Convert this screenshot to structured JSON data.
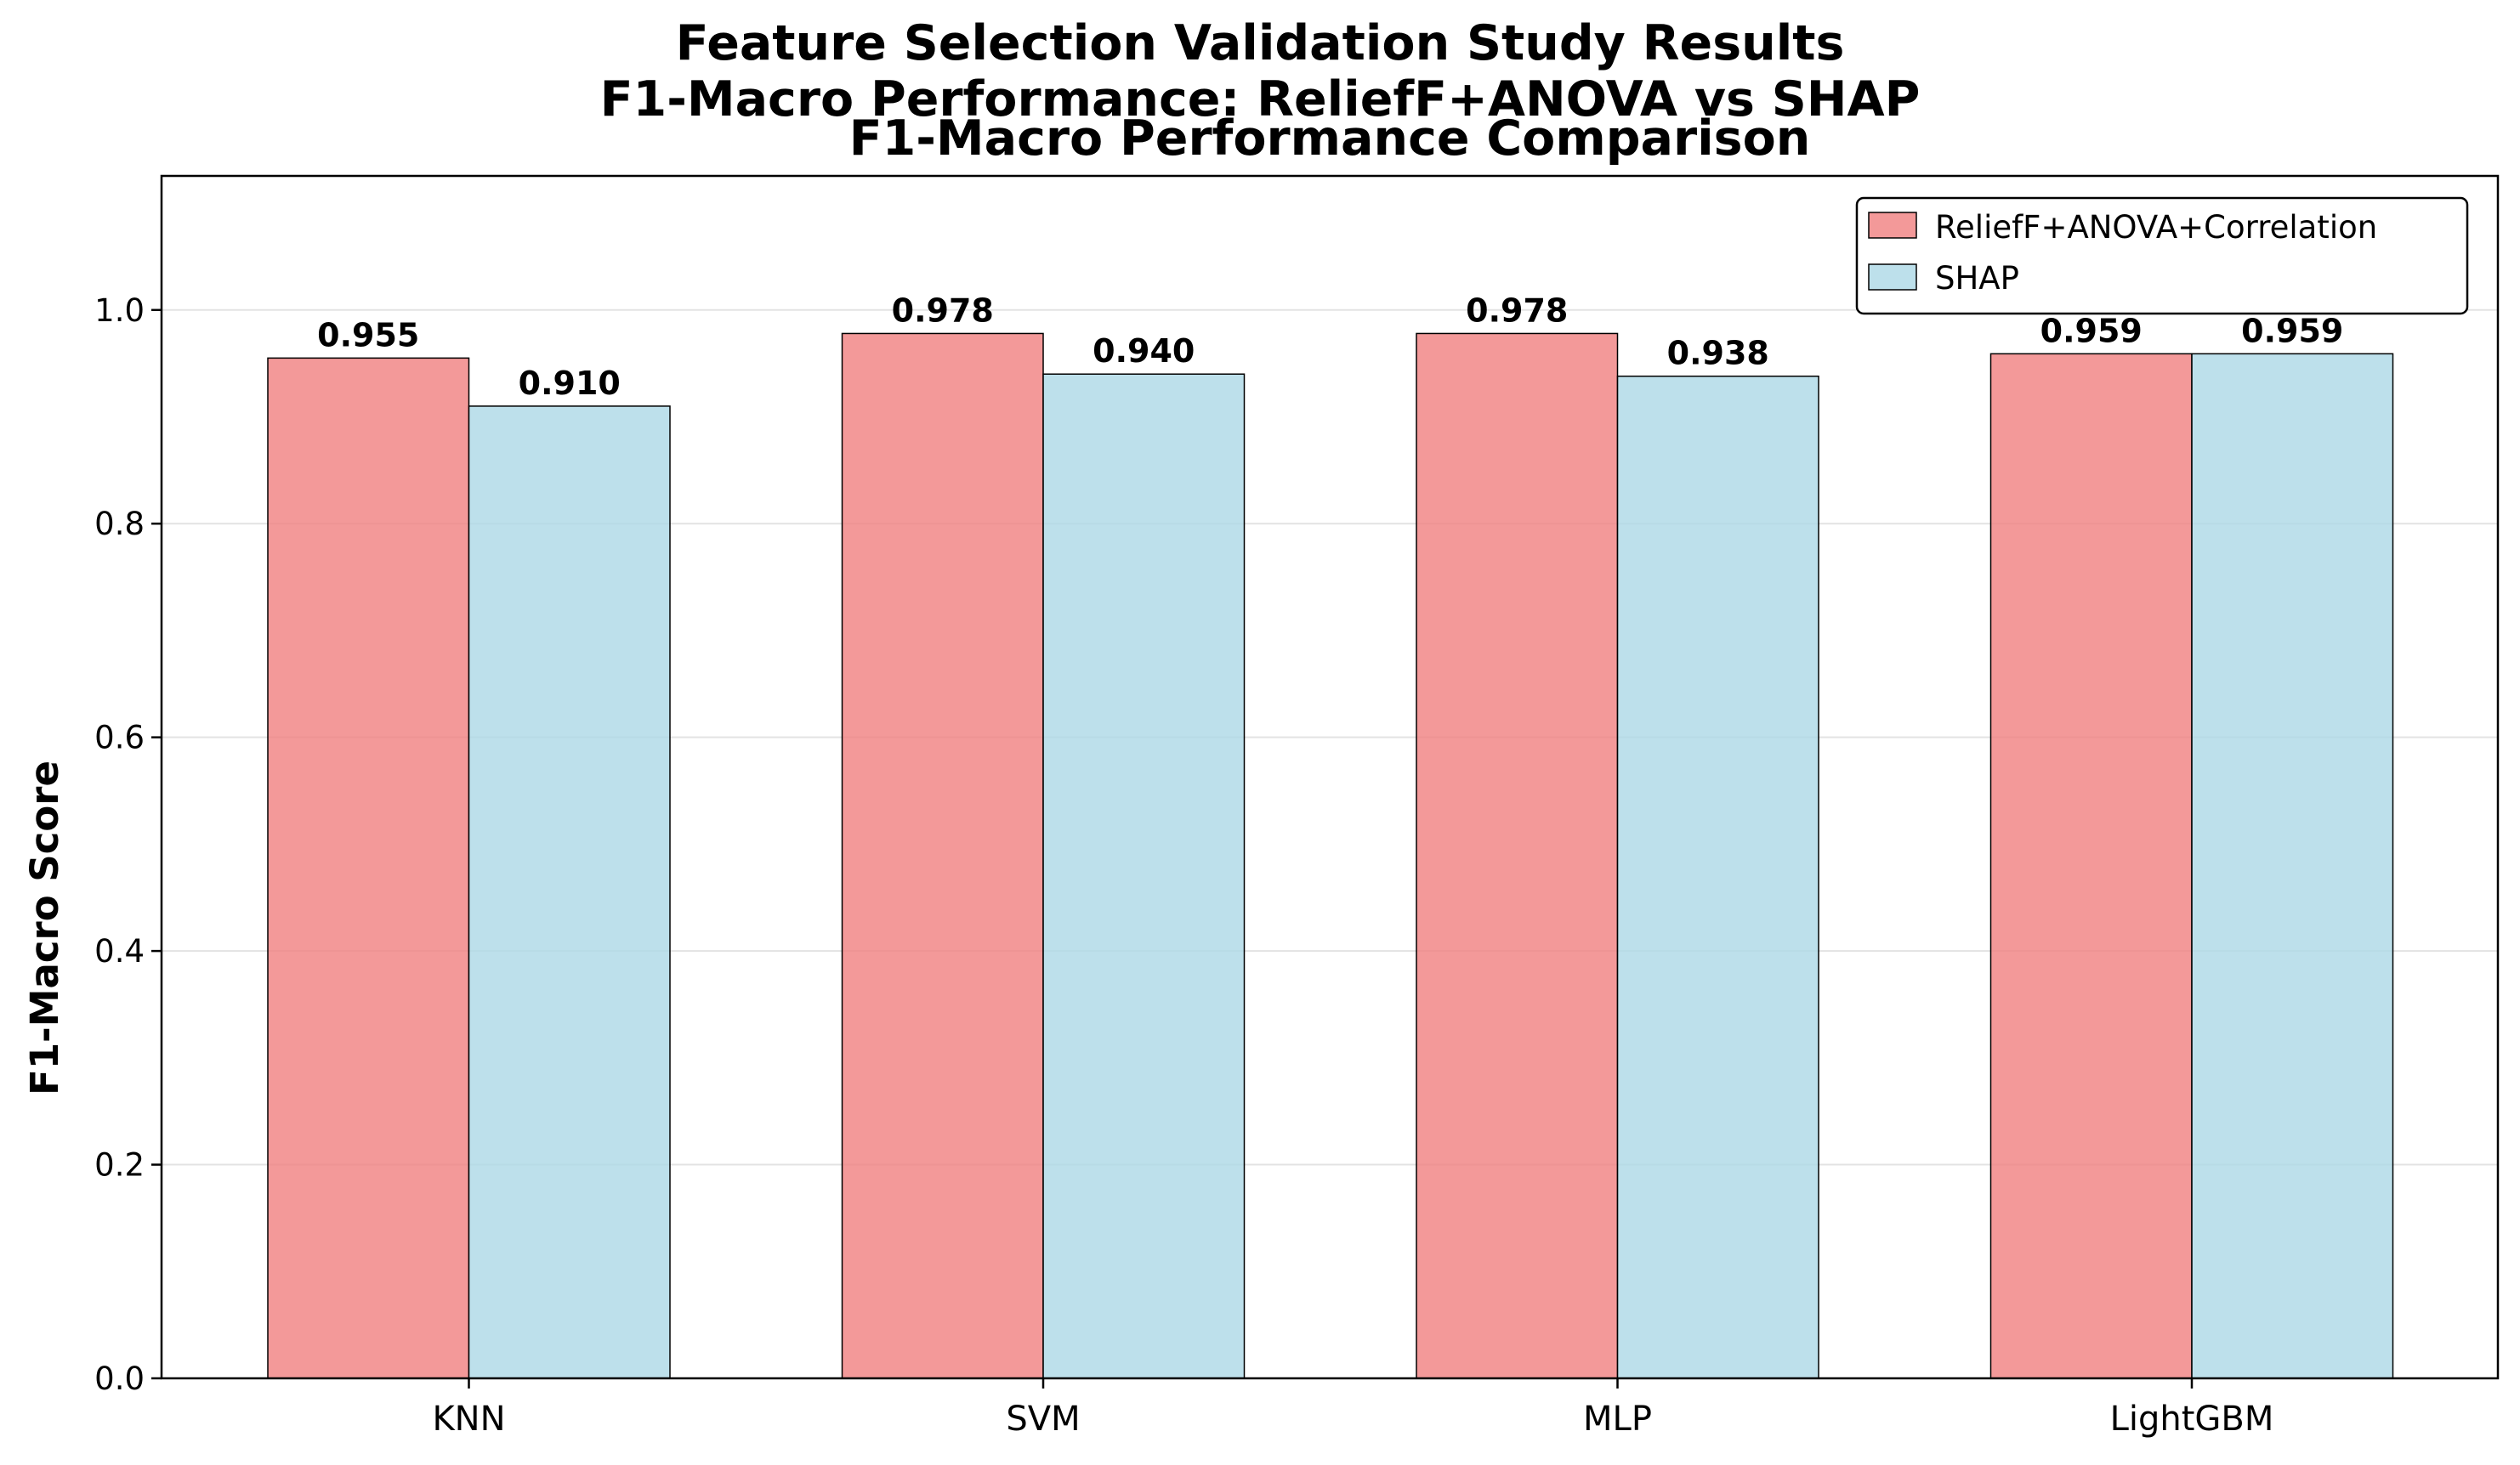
{
  "chart_data": {
    "type": "bar",
    "suptitle_lines": [
      "Feature Selection Validation Study Results",
      "F1-Macro Performance: ReliefF+ANOVA vs SHAP"
    ],
    "title": "F1-Macro Performance Comparison",
    "xlabel": "",
    "ylabel": "F1-Macro Score",
    "categories": [
      "KNN",
      "SVM",
      "MLP",
      "LightGBM"
    ],
    "series": [
      {
        "name": "ReliefF+ANOVA+Correlation",
        "values": [
          0.955,
          0.978,
          0.978,
          0.959
        ],
        "labels": [
          "0.955",
          "0.978",
          "0.978",
          "0.959"
        ],
        "color": "#f08080"
      },
      {
        "name": "SHAP",
        "values": [
          0.91,
          0.94,
          0.938,
          0.959
        ],
        "labels": [
          "0.910",
          "0.940",
          "0.938",
          "0.959"
        ],
        "color": "#add8e6"
      }
    ],
    "ylim": [
      0,
      1.1255
    ],
    "yticks": [
      "0.0",
      "0.2",
      "0.4",
      "0.6",
      "0.8",
      "1.0"
    ],
    "grid": "y-axis, light",
    "legend_position": "top-right"
  }
}
